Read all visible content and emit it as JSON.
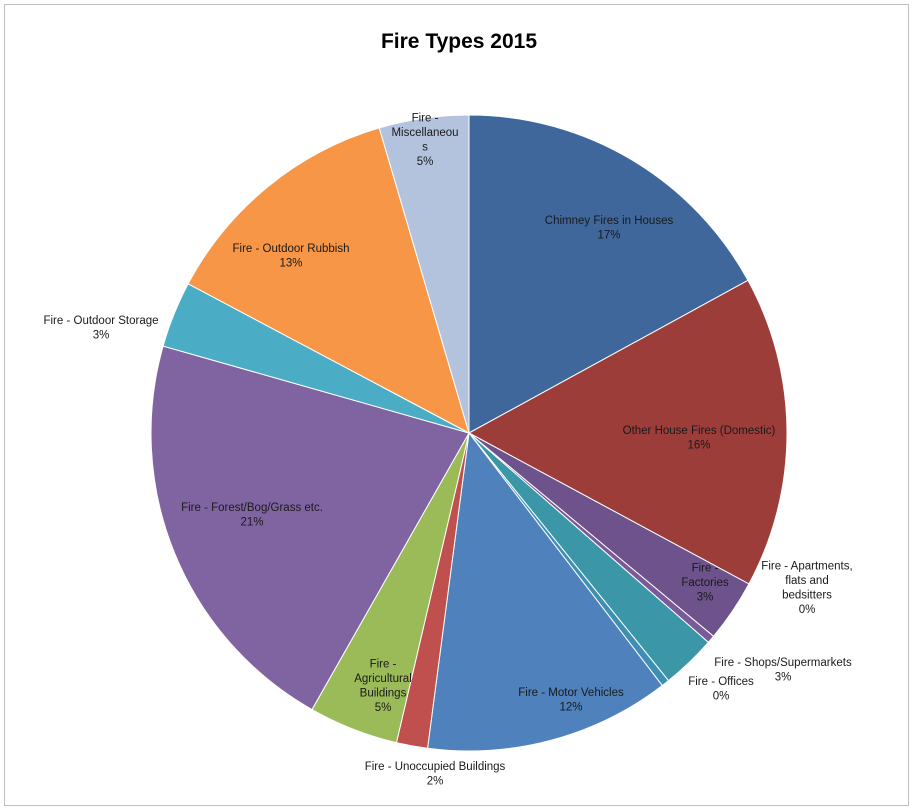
{
  "chart_data": {
    "type": "pie",
    "title": "Fire Types 2015",
    "start_angle_deg": 0,
    "direction": "clockwise",
    "slices": [
      {
        "label": [
          "Chimney Fires in Houses",
          "17%"
        ],
        "value": 17.2,
        "color": "#3f679b"
      },
      {
        "label": [
          "Other House Fires (Domestic)",
          "16%"
        ],
        "value": 16.0,
        "color": "#9c3d3a"
      },
      {
        "label": [
          "Fire -",
          "Factories",
          "3%"
        ],
        "value": 3.2,
        "color": "#6d528c"
      },
      {
        "label": [
          "Fire - Apartments,",
          "flats and",
          "bedsitters",
          "0%"
        ],
        "value": 0.4,
        "color": "#7a5a9a"
      },
      {
        "label": [
          "Fire - Shops/Supermarkets",
          "3%"
        ],
        "value": 2.8,
        "color": "#3b97a8"
      },
      {
        "label": [
          "Fire - Offices",
          "0%"
        ],
        "value": 0.4,
        "color": "#3d8fb3"
      },
      {
        "label": [
          "Fire - Motor Vehicles",
          "12%"
        ],
        "value": 12.6,
        "color": "#4f81bd"
      },
      {
        "label": [
          "Fire - Unoccupied Buildings",
          "2%"
        ],
        "value": 1.6,
        "color": "#c0504d"
      },
      {
        "label": [
          "Fire -",
          "Agricultural",
          "Buildings",
          "5%"
        ],
        "value": 4.6,
        "color": "#9bbb59"
      },
      {
        "label": [
          "Fire - Forest/Bog/Grass etc.",
          "21%"
        ],
        "value": 21.4,
        "color": "#8064a2"
      },
      {
        "label": [
          "Fire - Outdoor Storage",
          "3%"
        ],
        "value": 3.4,
        "color": "#4bacc6"
      },
      {
        "label": [
          "Fire - Outdoor Rubbish",
          "13%"
        ],
        "value": 12.8,
        "color": "#f79646"
      },
      {
        "label": [
          "Fire -",
          "Miscellaneou",
          "s",
          "5%"
        ],
        "value": 4.6,
        "color": "#b3c3de"
      }
    ]
  }
}
